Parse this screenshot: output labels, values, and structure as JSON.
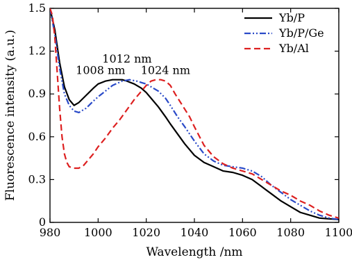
{
  "chart_data": {
    "type": "line",
    "title": "",
    "xlabel": "Wavelength /nm",
    "ylabel": "Fluorescence intensity (a.u.)",
    "xlim": [
      980,
      1100
    ],
    "ylim": [
      0,
      1.5
    ],
    "xticks": [
      980,
      1000,
      1020,
      1040,
      1060,
      1080,
      1100
    ],
    "yticks": [
      0,
      0.3,
      0.6,
      0.9,
      1.2,
      1.5
    ],
    "xtick_labels": [
      "980",
      "1000",
      "1020",
      "1040",
      "1060",
      "1080",
      "1100"
    ],
    "ytick_labels": [
      "0",
      "0.3",
      "0.6",
      "0.9",
      "1.2",
      "1.5"
    ],
    "grid": false,
    "legend_position": "top-right",
    "series": [
      {
        "name": "Yb/P",
        "color": "#000000",
        "dash": "solid",
        "x": [
          980,
          982,
          984,
          986,
          988,
          990,
          992,
          995,
          998,
          1000,
          1003,
          1006,
          1008,
          1010,
          1012,
          1015,
          1018,
          1020,
          1022,
          1025,
          1028,
          1030,
          1033,
          1036,
          1040,
          1044,
          1048,
          1052,
          1056,
          1060,
          1064,
          1068,
          1072,
          1076,
          1080,
          1084,
          1088,
          1092,
          1096,
          1100
        ],
        "y": [
          1.5,
          1.35,
          1.12,
          0.95,
          0.86,
          0.82,
          0.84,
          0.89,
          0.94,
          0.97,
          0.99,
          1.0,
          1.0,
          1.0,
          0.99,
          0.97,
          0.94,
          0.91,
          0.87,
          0.81,
          0.74,
          0.69,
          0.62,
          0.55,
          0.47,
          0.42,
          0.39,
          0.36,
          0.35,
          0.33,
          0.3,
          0.25,
          0.2,
          0.15,
          0.11,
          0.07,
          0.05,
          0.03,
          0.025,
          0.02
        ]
      },
      {
        "name": "Yb/P/Ge",
        "color": "#2a4ac8",
        "dash": "dashdotdot",
        "x": [
          980,
          982,
          984,
          986,
          988,
          990,
          992,
          995,
          998,
          1000,
          1003,
          1006,
          1010,
          1013,
          1016,
          1018,
          1020,
          1022,
          1025,
          1028,
          1030,
          1033,
          1036,
          1040,
          1044,
          1048,
          1052,
          1056,
          1060,
          1064,
          1068,
          1072,
          1076,
          1080,
          1084,
          1088,
          1092,
          1096,
          1100
        ],
        "y": [
          1.5,
          1.32,
          1.08,
          0.9,
          0.82,
          0.78,
          0.77,
          0.8,
          0.85,
          0.88,
          0.92,
          0.96,
          0.99,
          1.0,
          0.99,
          0.98,
          0.97,
          0.95,
          0.92,
          0.87,
          0.82,
          0.74,
          0.67,
          0.57,
          0.48,
          0.43,
          0.4,
          0.39,
          0.38,
          0.36,
          0.32,
          0.26,
          0.21,
          0.16,
          0.12,
          0.08,
          0.05,
          0.03,
          0.02
        ]
      },
      {
        "name": "Yb/Al",
        "color": "#dd2020",
        "dash": "dashed",
        "x": [
          980,
          981,
          982,
          983,
          984,
          985,
          986,
          987,
          988,
          990,
          992,
          994,
          996,
          998,
          1000,
          1003,
          1006,
          1009,
          1012,
          1015,
          1018,
          1020,
          1022,
          1024,
          1026,
          1028,
          1030,
          1032,
          1035,
          1038,
          1040,
          1044,
          1048,
          1052,
          1056,
          1060,
          1064,
          1068,
          1072,
          1076,
          1080,
          1084,
          1088,
          1092,
          1096,
          1100
        ],
        "y": [
          1.5,
          1.45,
          1.3,
          1.05,
          0.8,
          0.6,
          0.48,
          0.42,
          0.39,
          0.38,
          0.38,
          0.4,
          0.44,
          0.48,
          0.53,
          0.59,
          0.66,
          0.72,
          0.79,
          0.86,
          0.92,
          0.96,
          0.99,
          1.0,
          1.0,
          0.99,
          0.96,
          0.9,
          0.82,
          0.74,
          0.67,
          0.54,
          0.46,
          0.41,
          0.38,
          0.36,
          0.34,
          0.3,
          0.26,
          0.22,
          0.19,
          0.15,
          0.12,
          0.08,
          0.05,
          0.03
        ]
      }
    ],
    "annotations": [
      {
        "text": "1012 nm",
        "x": 1012,
        "y": 1.12
      },
      {
        "text": "1008 nm",
        "x": 1001,
        "y": 1.04
      },
      {
        "text": "1024 nm",
        "x": 1028,
        "y": 1.04
      }
    ]
  }
}
